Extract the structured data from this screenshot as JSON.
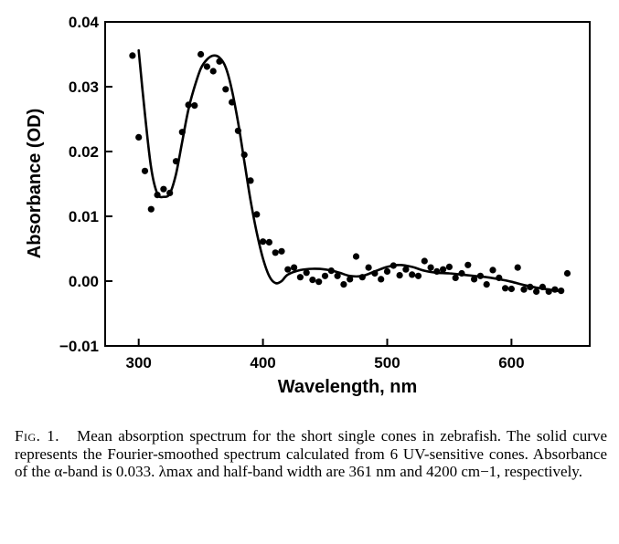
{
  "chart_data": {
    "type": "scatter",
    "xlabel": "Wavelength, nm",
    "ylabel": "Absorbance (OD)",
    "xlim": [
      273,
      663
    ],
    "ylim": [
      -0.01,
      0.04
    ],
    "x_ticks": [
      "300",
      "400",
      "500",
      "600"
    ],
    "x_tick_values": [
      300,
      400,
      500,
      600
    ],
    "y_ticks": [
      "0.04",
      "0.03",
      "0.02",
      "0.01",
      "0.00",
      "−0.01"
    ],
    "y_tick_values": [
      0.04,
      0.03,
      0.02,
      0.01,
      0.0,
      -0.01
    ],
    "grid": false,
    "series": [
      {
        "type": "scatter",
        "points": [
          [
            295,
            0.0348
          ],
          [
            300,
            0.0222
          ],
          [
            305,
            0.017
          ],
          [
            310,
            0.0111
          ],
          [
            315,
            0.0133
          ],
          [
            320,
            0.0142
          ],
          [
            325,
            0.0136
          ],
          [
            330,
            0.0185
          ],
          [
            335,
            0.023
          ],
          [
            340,
            0.0272
          ],
          [
            345,
            0.0271
          ],
          [
            350,
            0.035
          ],
          [
            355,
            0.0331
          ],
          [
            360,
            0.0324
          ],
          [
            365,
            0.0339
          ],
          [
            370,
            0.0296
          ],
          [
            375,
            0.0276
          ],
          [
            380,
            0.0232
          ],
          [
            385,
            0.0195
          ],
          [
            390,
            0.0155
          ],
          [
            395,
            0.0103
          ],
          [
            400,
            0.0061
          ],
          [
            405,
            0.006
          ],
          [
            410,
            0.0044
          ],
          [
            415,
            0.0046
          ],
          [
            420,
            0.0018
          ],
          [
            425,
            0.0021
          ],
          [
            430,
            0.0006
          ],
          [
            435,
            0.0013
          ],
          [
            440,
            0.0002
          ],
          [
            445,
            -0.0001
          ],
          [
            450,
            0.0008
          ],
          [
            455,
            0.0016
          ],
          [
            460,
            0.0008
          ],
          [
            465,
            -0.0005
          ],
          [
            470,
            0.0003
          ],
          [
            475,
            0.0038
          ],
          [
            480,
            0.0006
          ],
          [
            485,
            0.0021
          ],
          [
            490,
            0.0012
          ],
          [
            495,
            0.0003
          ],
          [
            500,
            0.0015
          ],
          [
            505,
            0.0024
          ],
          [
            510,
            0.0009
          ],
          [
            515,
            0.0018
          ],
          [
            520,
            0.001
          ],
          [
            525,
            0.0008
          ],
          [
            530,
            0.0031
          ],
          [
            535,
            0.0021
          ],
          [
            540,
            0.0015
          ],
          [
            545,
            0.0018
          ],
          [
            550,
            0.0022
          ],
          [
            555,
            0.0005
          ],
          [
            560,
            0.0012
          ],
          [
            565,
            0.0025
          ],
          [
            570,
            0.0003
          ],
          [
            575,
            0.0008
          ],
          [
            580,
            -0.0005
          ],
          [
            585,
            0.0017
          ],
          [
            590,
            0.0005
          ],
          [
            595,
            -0.0011
          ],
          [
            600,
            -0.0012
          ],
          [
            605,
            0.0021
          ],
          [
            610,
            -0.0013
          ],
          [
            615,
            -0.0009
          ],
          [
            620,
            -0.0016
          ],
          [
            625,
            -0.0009
          ],
          [
            630,
            -0.0016
          ],
          [
            635,
            -0.0013
          ],
          [
            640,
            -0.0015
          ],
          [
            645,
            0.0012
          ]
        ]
      },
      {
        "type": "line",
        "style": "solid",
        "points": [
          [
            300,
            0.0356
          ],
          [
            305,
            0.0258
          ],
          [
            310,
            0.0175
          ],
          [
            315,
            0.0135
          ],
          [
            320,
            0.013
          ],
          [
            325,
            0.0135
          ],
          [
            330,
            0.0165
          ],
          [
            335,
            0.0215
          ],
          [
            340,
            0.0265
          ],
          [
            345,
            0.03
          ],
          [
            350,
            0.0328
          ],
          [
            355,
            0.0342
          ],
          [
            360,
            0.0348
          ],
          [
            365,
            0.0345
          ],
          [
            370,
            0.033
          ],
          [
            375,
            0.0295
          ],
          [
            380,
            0.0245
          ],
          [
            385,
            0.0185
          ],
          [
            390,
            0.0125
          ],
          [
            395,
            0.0075
          ],
          [
            400,
            0.0035
          ],
          [
            405,
            0.0008
          ],
          [
            410,
            -0.0003
          ],
          [
            415,
            0.0
          ],
          [
            420,
            0.001
          ],
          [
            430,
            0.0017
          ],
          [
            440,
            0.0019
          ],
          [
            450,
            0.0018
          ],
          [
            460,
            0.0014
          ],
          [
            470,
            0.0008
          ],
          [
            480,
            0.0008
          ],
          [
            490,
            0.0015
          ],
          [
            500,
            0.0022
          ],
          [
            510,
            0.0025
          ],
          [
            520,
            0.0022
          ],
          [
            530,
            0.0016
          ],
          [
            540,
            0.0013
          ],
          [
            550,
            0.0012
          ],
          [
            560,
            0.001
          ],
          [
            570,
            0.0008
          ],
          [
            580,
            0.0006
          ],
          [
            590,
            0.0003
          ],
          [
            600,
            -0.0001
          ],
          [
            610,
            -0.0006
          ],
          [
            620,
            -0.001
          ],
          [
            630,
            -0.0013
          ],
          [
            640,
            -0.0016
          ]
        ]
      }
    ]
  },
  "caption": {
    "fig_label": "Fig. 1.",
    "text": "Mean absorption spectrum for the short single cones in zebrafish. The solid curve represents the Fourier-smoothed spectrum calculated from 6 UV-sensitive cones. Absorbance of the α-band is 0.033. λmax and half-band width are 361 nm and 4200 cm−1, respectively."
  }
}
